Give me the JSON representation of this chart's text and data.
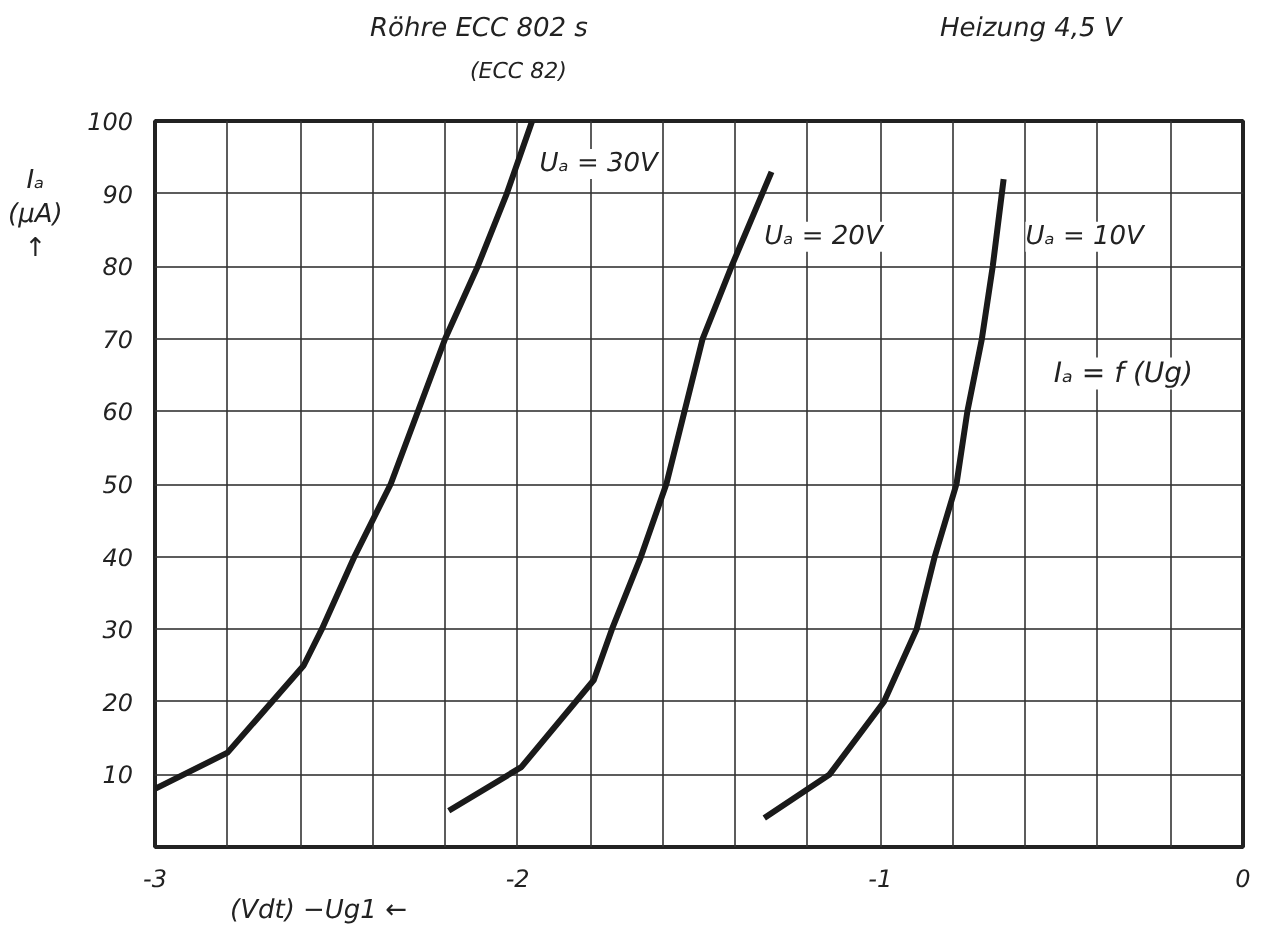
{
  "chart_data": {
    "type": "line",
    "title": "Röhre ECC 802 s",
    "subtitle": "(ECC 82)",
    "xlabel": "(Vdt) −Ug1 ←",
    "ylabel": "Iₐ (µA) ↑",
    "annotations": [
      "Heizung 4,5 V",
      "Iₐ = f (Ug)"
    ],
    "xlim": [
      -3,
      0
    ],
    "ylim": [
      0,
      100
    ],
    "xticks": [
      -3,
      {
        "value": -2.8,
        "label": null
      },
      {
        "value": -2.6,
        "label": null
      },
      {
        "value": -2.4,
        "label": null
      },
      {
        "value": -2.2,
        "label": null
      },
      -2,
      {
        "value": -1.8,
        "label": null
      },
      {
        "value": -1.6,
        "label": null
      },
      {
        "value": -1.4,
        "label": null
      },
      {
        "value": -1.2,
        "label": null
      },
      -1,
      {
        "value": -0.8,
        "label": null
      },
      {
        "value": -0.6,
        "label": null
      },
      {
        "value": -0.4,
        "label": null
      },
      {
        "value": -0.2,
        "label": null
      },
      0
    ],
    "yticks": [
      10,
      20,
      30,
      40,
      50,
      60,
      70,
      80,
      90,
      100
    ],
    "grid": true,
    "marker": "none",
    "line_style": "solid",
    "series": [
      {
        "name": "Uₐ = 30V",
        "color": "#1a1a1a",
        "x": [
          -3,
          -2.8,
          -2.59,
          -2.54,
          -2.45,
          -2.35,
          -2.2,
          -2.11,
          -2.03,
          -1.96
        ],
        "values": [
          8,
          13,
          25,
          30,
          40,
          50,
          70,
          80,
          90,
          100
        ]
      },
      {
        "name": "Uₐ = 20V",
        "color": "#1a1a1a",
        "x": [
          -2.19,
          -1.99,
          -1.79,
          -1.74,
          -1.66,
          -1.59,
          -1.49,
          -1.41,
          -1.3
        ],
        "values": [
          5,
          11,
          23,
          30,
          40,
          50,
          70,
          80,
          93
        ]
      },
      {
        "name": "Uₐ = 10V",
        "color": "#1a1a1a",
        "x": [
          -1.32,
          -1.14,
          -0.99,
          -0.9,
          -0.85,
          -0.79,
          -0.76,
          -0.72,
          -0.69,
          -0.66
        ],
        "values": [
          4,
          10,
          20,
          30,
          40,
          50,
          60,
          70,
          80,
          92
        ]
      }
    ]
  }
}
